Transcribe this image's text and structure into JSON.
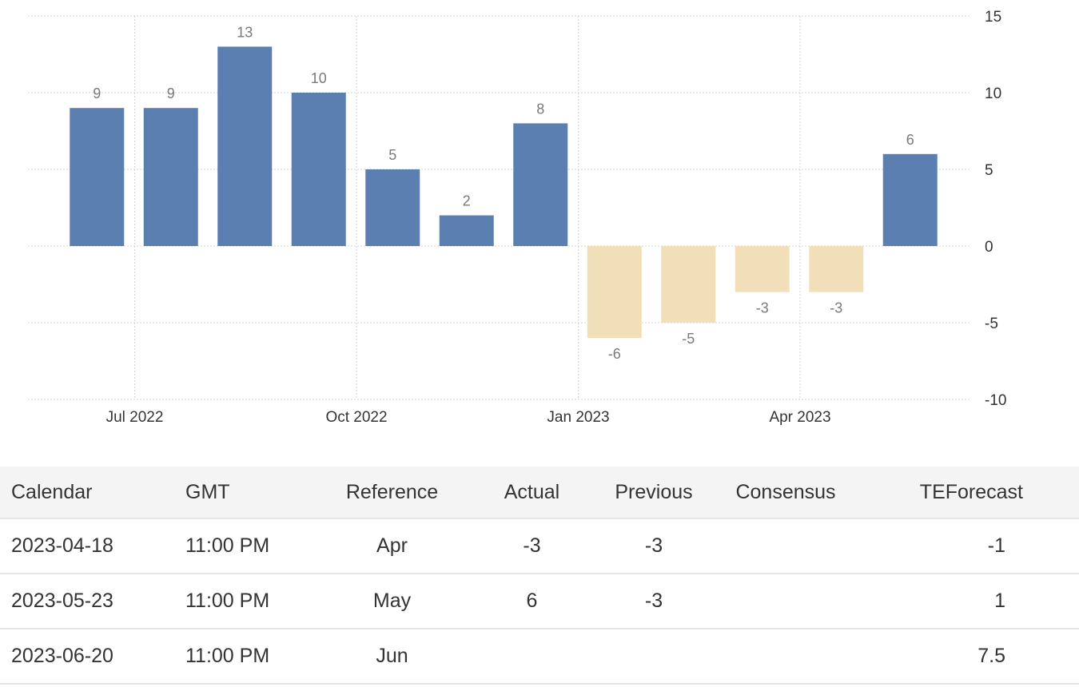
{
  "chart_data": {
    "type": "bar",
    "categories": [
      "2022-06",
      "2022-07",
      "2022-08",
      "2022-09",
      "2022-10",
      "2022-11",
      "2022-12",
      "2023-01",
      "2023-02",
      "2023-03",
      "2023-04",
      "2023-05"
    ],
    "values": [
      9,
      9,
      13,
      10,
      5,
      2,
      8,
      -6,
      -5,
      -3,
      -3,
      6
    ],
    "x_tick_labels": [
      "Jul 2022",
      "Oct 2022",
      "Jan 2023",
      "Apr 2023"
    ],
    "y_ticks": [
      15,
      10,
      5,
      0,
      -5,
      -10
    ],
    "ylim": [
      -10,
      15
    ],
    "grid": true,
    "y_axis_position": "right",
    "colors": {
      "positive": "#5b7fb0",
      "negative": "#f0dfb8"
    },
    "title": "",
    "xlabel": "",
    "ylabel": ""
  },
  "calendar": {
    "headers": {
      "calendar": "Calendar",
      "gmt": "GMT",
      "reference": "Reference",
      "actual": "Actual",
      "previous": "Previous",
      "consensus": "Consensus",
      "teforecast": "TEForecast"
    },
    "rows": [
      {
        "date": "2023-04-18",
        "time": "11:00 PM",
        "reference": "Apr",
        "actual": "-3",
        "previous": "-3",
        "consensus": "",
        "teforecast": "-1"
      },
      {
        "date": "2023-05-23",
        "time": "11:00 PM",
        "reference": "May",
        "actual": "6",
        "previous": "-3",
        "consensus": "",
        "teforecast": "1"
      },
      {
        "date": "2023-06-20",
        "time": "11:00 PM",
        "reference": "Jun",
        "actual": "",
        "previous": "",
        "consensus": "",
        "teforecast": "7.5"
      }
    ]
  }
}
